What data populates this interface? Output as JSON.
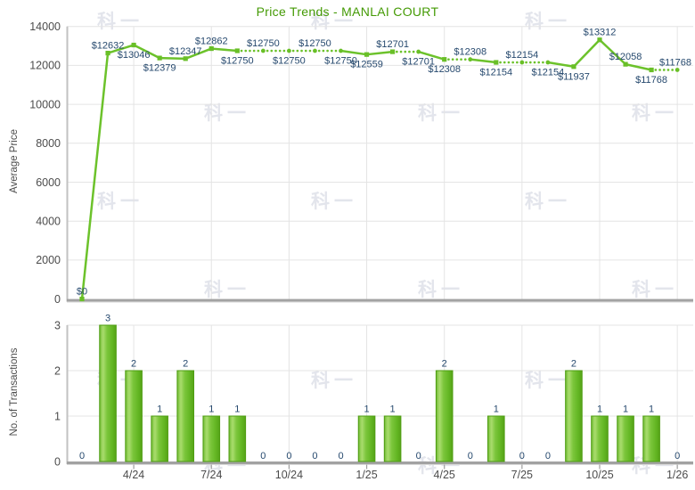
{
  "watermark": "科一",
  "colors": {
    "line": "#6cc22b",
    "marker": "#69bf27",
    "bar_border": "#4f9d13",
    "bar_gradient": [
      "#67b427",
      "#8ecd52",
      "#a9dc6d",
      "#7cc63c",
      "#64b724",
      "#55a317"
    ],
    "title": "#449a04",
    "data_label": "#26496e",
    "tick_label": "#4c4c4c",
    "gridline": "#e4e4e4",
    "axis_line": "#a2a2a2",
    "axis_line_light": "#dadada",
    "left_border": "#c2c2c2",
    "watermark": "#e3e5ec",
    "background": "#ffffff"
  },
  "chart_data": [
    {
      "type": "line",
      "title": "Price Trends - MANLAI COURT",
      "ylabel": "Average Price",
      "ylim": [
        0,
        14000
      ],
      "yticks": [
        0,
        2000,
        4000,
        6000,
        8000,
        10000,
        12000,
        14000
      ],
      "xticks": [
        "4/24",
        "7/24",
        "10/24",
        "1/25",
        "4/25",
        "7/25",
        "10/25",
        "1/26"
      ],
      "x": [
        "2/24",
        "3/24",
        "4/24",
        "5/24",
        "6/24",
        "7/24",
        "8/24",
        "9/24",
        "10/24",
        "11/24",
        "12/24",
        "1/25",
        "2/25",
        "3/25",
        "4/25",
        "5/25",
        "6/25",
        "7/25",
        "8/25",
        "9/25",
        "10/25",
        "11/25",
        "12/25",
        "1/26"
      ],
      "values": [
        0,
        12632,
        13046,
        12379,
        12347,
        12862,
        12750,
        12750,
        12750,
        12750,
        12750,
        12559,
        12701,
        12701,
        12308,
        12308,
        12154,
        12154,
        12154,
        11937,
        13312,
        12058,
        11768,
        11768
      ],
      "labels": [
        "$0",
        "$12632",
        "$13046",
        "$12379",
        "$12347",
        "$12862",
        "$12750",
        "$12750",
        "$12750",
        "$12750",
        "$12750",
        "$12559",
        "$12701",
        "$12701",
        "$12308",
        "$12308",
        "$12154",
        "$12154",
        "$12154",
        "$11937",
        "$13312",
        "$12058",
        "$11768",
        "$11768"
      ],
      "label_pos": [
        "above",
        "above",
        "below",
        "below",
        "above",
        "above",
        "below",
        "above",
        "below",
        "above",
        "below",
        "below",
        "above",
        "below",
        "below",
        "above",
        "below",
        "above",
        "below",
        "below",
        "above",
        "above",
        "below",
        "above"
      ],
      "interpolated": [
        true,
        false,
        false,
        false,
        false,
        false,
        false,
        true,
        true,
        true,
        true,
        false,
        false,
        true,
        false,
        true,
        false,
        true,
        true,
        false,
        false,
        false,
        false,
        true
      ],
      "grid": true,
      "legend": false
    },
    {
      "type": "bar",
      "ylabel": "No. of Transactions",
      "ylim": [
        0,
        3
      ],
      "yticks": [
        0,
        1,
        2,
        3
      ],
      "xticks": [
        "4/24",
        "7/24",
        "10/24",
        "1/25",
        "4/25",
        "7/25",
        "10/25",
        "1/26"
      ],
      "categories": [
        "2/24",
        "3/24",
        "4/24",
        "5/24",
        "6/24",
        "7/24",
        "8/24",
        "9/24",
        "10/24",
        "11/24",
        "12/24",
        "1/25",
        "2/25",
        "3/25",
        "4/25",
        "5/25",
        "6/25",
        "7/25",
        "8/25",
        "9/25",
        "10/25",
        "11/25",
        "12/25",
        "1/26"
      ],
      "values": [
        0,
        3,
        2,
        1,
        2,
        1,
        1,
        0,
        0,
        0,
        0,
        1,
        1,
        0,
        2,
        0,
        1,
        0,
        0,
        2,
        1,
        1,
        1,
        0
      ],
      "grid": true,
      "legend": false
    }
  ]
}
